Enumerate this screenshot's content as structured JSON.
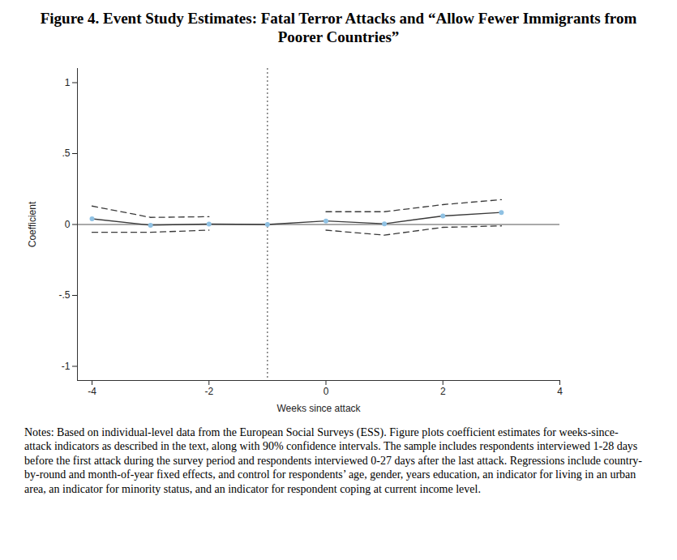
{
  "chart_data": {
    "type": "line",
    "title": "Figure 4. Event Study Estimates: Fatal Terror Attacks and “Allow Fewer Immigrants from Poorer Countries”",
    "notes": "Notes: Based on individual-level data from the European Social Surveys (ESS). Figure plots coefficient estimates for weeks-since-attack indicators as described in the text, along with 90% confidence intervals. The sample includes respondents interviewed 1-28 days before the first attack during the survey period and respondents interviewed 0-27 days after the last attack. Regressions include country-by-round and month-of-year fixed effects, and control for respondents’ age, gender, years education, an indicator for living in an urban area, an indicator for minority status, and an indicator for respondent coping at current income level.",
    "x_label": "Weeks since attack",
    "y_label": "Coefficient",
    "x": [
      -4,
      -3,
      -2,
      -1,
      0,
      1,
      2,
      3
    ],
    "series": [
      {
        "color": "#3a3a3a",
        "marker": "circle",
        "line_style": "solid",
        "values": [
          0.04,
          -0.005,
          0.003,
          0,
          0.025,
          0.005,
          0.06,
          0.085
        ],
        "ci_lower": [
          -0.055,
          -0.055,
          -0.04,
          null,
          -0.04,
          -0.075,
          -0.02,
          -0.01
        ],
        "ci_upper": [
          0.13,
          0.05,
          0.055,
          null,
          0.09,
          0.09,
          0.14,
          0.175
        ]
      }
    ],
    "reference_lines": {
      "x": -1,
      "y": 0
    },
    "xlim": [
      -4.25,
      4
    ],
    "ylim": [
      -1.1,
      1.1
    ],
    "xticks": [
      -4,
      -2,
      0,
      2,
      4
    ],
    "yticks": [
      -1,
      {
        "value": -0.5,
        "label": "-.5"
      },
      0,
      {
        "value": 0.5,
        "label": ".5"
      },
      1
    ],
    "grid": false
  }
}
